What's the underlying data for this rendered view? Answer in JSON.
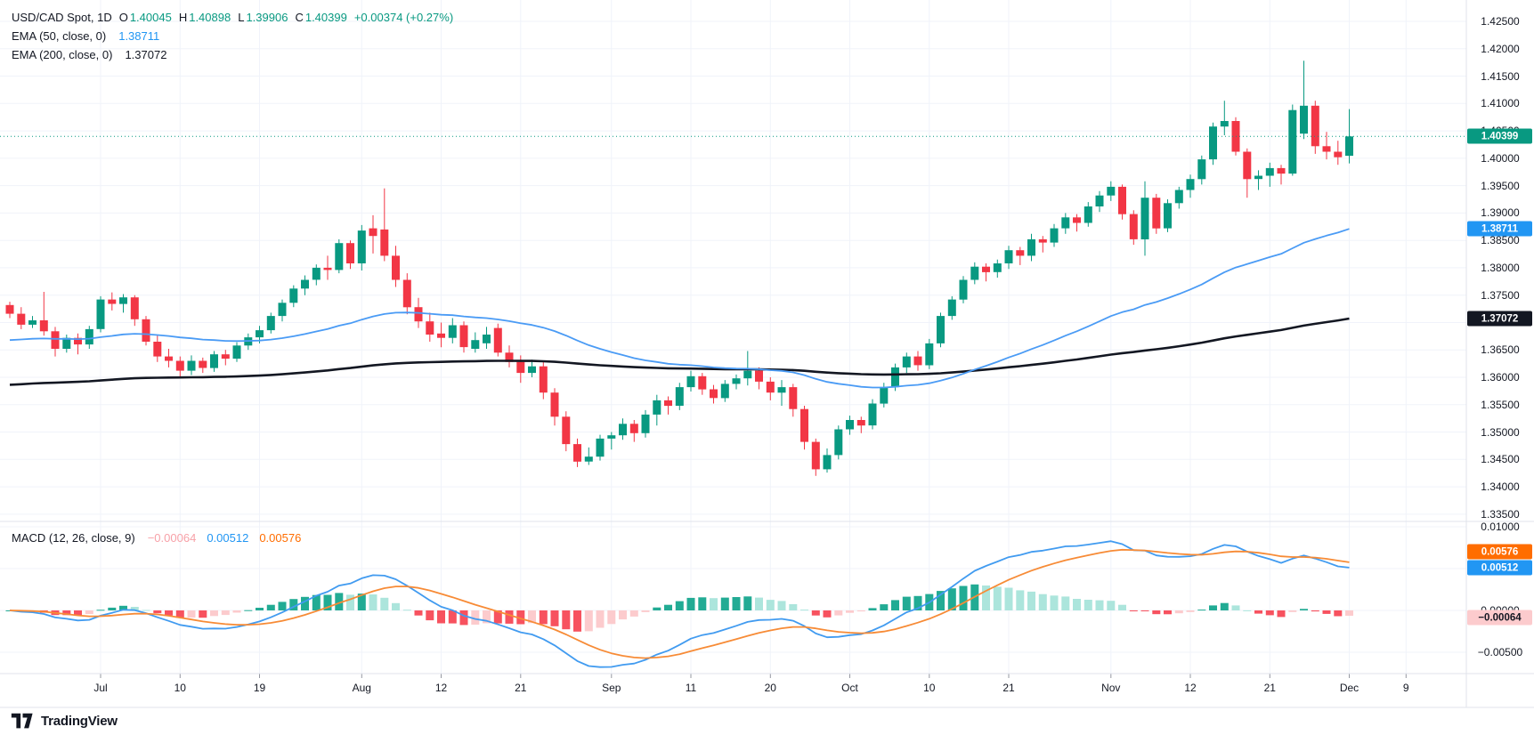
{
  "header": {
    "symbol_title": "USD/CAD Spot, 1D",
    "ohlc": {
      "o_label": "O",
      "o": "1.40045",
      "h_label": "H",
      "h": "1.40898",
      "l_label": "L",
      "l": "1.39906",
      "c_label": "C",
      "c": "1.40399",
      "change": "+0.00374 (+0.27%)"
    },
    "ema50_label": "EMA (50, close, 0)",
    "ema50_value": "1.38711",
    "ema200_label": "EMA (200, close, 0)",
    "ema200_value": "1.37072"
  },
  "macd_panel": {
    "label": "MACD (12, 26, close, 9)",
    "hist_value": "−0.00064",
    "macd_value": "0.00512",
    "signal_value": "0.00576"
  },
  "price_axis": {
    "ticks": [
      "1.42500",
      "1.42000",
      "1.41500",
      "1.41000",
      "1.40500",
      "1.40000",
      "1.39500",
      "1.39000",
      "1.38500",
      "1.38000",
      "1.37500",
      "1.37000",
      "1.36500",
      "1.36000",
      "1.35500",
      "1.35000",
      "1.34500",
      "1.34000",
      "1.33500"
    ],
    "badges": {
      "last_price": "1.40399",
      "ema50": "1.38711",
      "ema200": "1.37072"
    }
  },
  "macd_axis": {
    "ticks": [
      {
        "label": "0.01000",
        "value": 0.01
      },
      {
        "label": "0.00000",
        "value": 0
      },
      {
        "label": "−0.00500",
        "value": -0.005
      }
    ],
    "grid_values": [
      0.01,
      0.005,
      0,
      -0.005
    ],
    "badges": {
      "signal": "0.00576",
      "macd": "0.00512",
      "hist": "−0.00064"
    }
  },
  "time_axis": {
    "ticks": [
      {
        "label": "Jul",
        "index": 8
      },
      {
        "label": "10",
        "index": 15
      },
      {
        "label": "19",
        "index": 22
      },
      {
        "label": "Aug",
        "index": 31
      },
      {
        "label": "12",
        "index": 38
      },
      {
        "label": "21",
        "index": 45
      },
      {
        "label": "Sep",
        "index": 53
      },
      {
        "label": "11",
        "index": 60
      },
      {
        "label": "20",
        "index": 67
      },
      {
        "label": "Oct",
        "index": 74
      },
      {
        "label": "10",
        "index": 81
      },
      {
        "label": "21",
        "index": 88
      },
      {
        "label": "Nov",
        "index": 97
      },
      {
        "label": "12",
        "index": 104
      },
      {
        "label": "21",
        "index": 111
      },
      {
        "label": "Dec",
        "index": 118
      },
      {
        "label": "9",
        "index": 123
      }
    ]
  },
  "branding": {
    "logo_text": "TradingView"
  },
  "colors": {
    "up": "#089981",
    "down": "#f23645",
    "ema50": "#4a9bf5",
    "ema200": "#131722",
    "macd_line": "#419bf0",
    "signal_line": "#f78b36",
    "hist_up": "#22ab94",
    "hist_up_fade": "#ace5dc",
    "hist_down": "#f7525f",
    "hist_down_fade": "#fccbcd",
    "badge_green": "#089981",
    "badge_blue": "#2196f3",
    "badge_black": "#131722",
    "badge_orange": "#ff6d00",
    "badge_pink": "#fccbcd",
    "badge_pink_text": "#131722",
    "grid": "#f0f3fa",
    "separator": "#e0e3eb",
    "tick": "#9598a1",
    "text": "#131722"
  },
  "chart_data": {
    "type": "candlestick+macd",
    "symbol": "USD/CAD Spot",
    "timeframe": "1D",
    "last_price": 1.40399,
    "ylim_price": [
      1.3337,
      1.4289
    ],
    "ylim_macd": [
      -0.00755,
      0.0102
    ],
    "indicators": {
      "ema50": {
        "period": 50,
        "seed": 1.3666,
        "last": 1.38711
      },
      "ema200": {
        "period": 200,
        "seed": 1.3585,
        "last": 1.37072
      },
      "macd": {
        "fast": 12,
        "slow": 26,
        "signal": 9,
        "last_macd": 0.00512,
        "last_signal": 0.00576,
        "last_hist": -0.00064
      }
    },
    "candles": [
      [
        1.3732,
        1.3738,
        1.3708,
        1.3716
      ],
      [
        1.3716,
        1.3728,
        1.3688,
        1.3696
      ],
      [
        1.3696,
        1.3712,
        1.369,
        1.3704
      ],
      [
        1.3704,
        1.3756,
        1.3676,
        1.3684
      ],
      [
        1.3684,
        1.3692,
        1.3638,
        1.3652
      ],
      [
        1.3652,
        1.3678,
        1.3645,
        1.3672
      ],
      [
        1.3672,
        1.368,
        1.3642,
        1.366
      ],
      [
        1.366,
        1.3694,
        1.3652,
        1.3688
      ],
      [
        1.3688,
        1.3748,
        1.3682,
        1.3742
      ],
      [
        1.3742,
        1.3755,
        1.3722,
        1.3734
      ],
      [
        1.3734,
        1.3752,
        1.3718,
        1.3746
      ],
      [
        1.3746,
        1.375,
        1.3694,
        1.3706
      ],
      [
        1.3706,
        1.3712,
        1.3658,
        1.3665
      ],
      [
        1.3665,
        1.3678,
        1.3628,
        1.3638
      ],
      [
        1.3638,
        1.3652,
        1.3618,
        1.363
      ],
      [
        1.363,
        1.3638,
        1.3598,
        1.3612
      ],
      [
        1.3612,
        1.364,
        1.3604,
        1.363
      ],
      [
        1.363,
        1.3636,
        1.3608,
        1.3617
      ],
      [
        1.3617,
        1.3648,
        1.361,
        1.3642
      ],
      [
        1.3642,
        1.365,
        1.3622,
        1.3634
      ],
      [
        1.3634,
        1.3664,
        1.3628,
        1.3658
      ],
      [
        1.3658,
        1.368,
        1.365,
        1.3673
      ],
      [
        1.3673,
        1.3694,
        1.3662,
        1.3686
      ],
      [
        1.3686,
        1.3718,
        1.368,
        1.3712
      ],
      [
        1.3712,
        1.3742,
        1.3702,
        1.3736
      ],
      [
        1.3736,
        1.3768,
        1.3728,
        1.3762
      ],
      [
        1.3762,
        1.3786,
        1.375,
        1.3778
      ],
      [
        1.3778,
        1.3806,
        1.3768,
        1.38
      ],
      [
        1.38,
        1.3822,
        1.3778,
        1.3796
      ],
      [
        1.3796,
        1.3852,
        1.379,
        1.3845
      ],
      [
        1.3845,
        1.385,
        1.3798,
        1.3808
      ],
      [
        1.3808,
        1.3878,
        1.3795,
        1.3868
      ],
      [
        1.3872,
        1.3896,
        1.3826,
        1.3858
      ],
      [
        1.387,
        1.3945,
        1.3812,
        1.3822
      ],
      [
        1.3822,
        1.384,
        1.3765,
        1.3778
      ],
      [
        1.3778,
        1.379,
        1.3715,
        1.3728
      ],
      [
        1.3728,
        1.3745,
        1.369,
        1.3702
      ],
      [
        1.3702,
        1.3718,
        1.3665,
        1.3678
      ],
      [
        1.368,
        1.37,
        1.3655,
        1.3672
      ],
      [
        1.3672,
        1.3708,
        1.3662,
        1.3695
      ],
      [
        1.3695,
        1.3702,
        1.3645,
        1.3655
      ],
      [
        1.3652,
        1.3682,
        1.3645,
        1.3668
      ],
      [
        1.3662,
        1.3692,
        1.3652,
        1.3678
      ],
      [
        1.369,
        1.3698,
        1.3638,
        1.3645
      ],
      [
        1.3645,
        1.3658,
        1.3618,
        1.3628
      ],
      [
        1.3628,
        1.364,
        1.359,
        1.3608
      ],
      [
        1.3608,
        1.3632,
        1.36,
        1.362
      ],
      [
        1.362,
        1.3628,
        1.356,
        1.3572
      ],
      [
        1.3572,
        1.358,
        1.3512,
        1.3528
      ],
      [
        1.3528,
        1.3538,
        1.3465,
        1.3478
      ],
      [
        1.3478,
        1.3488,
        1.3436,
        1.3446
      ],
      [
        1.3446,
        1.3472,
        1.344,
        1.3455
      ],
      [
        1.3455,
        1.3495,
        1.3448,
        1.3488
      ],
      [
        1.3488,
        1.35,
        1.3468,
        1.3494
      ],
      [
        1.3494,
        1.3525,
        1.3486,
        1.3515
      ],
      [
        1.3515,
        1.3522,
        1.3482,
        1.3498
      ],
      [
        1.3498,
        1.354,
        1.349,
        1.3532
      ],
      [
        1.3532,
        1.3568,
        1.3512,
        1.3558
      ],
      [
        1.3558,
        1.3565,
        1.3532,
        1.3548
      ],
      [
        1.3548,
        1.359,
        1.354,
        1.3582
      ],
      [
        1.3582,
        1.3612,
        1.3574,
        1.3602
      ],
      [
        1.3602,
        1.3608,
        1.3568,
        1.3578
      ],
      [
        1.3578,
        1.3586,
        1.3552,
        1.3562
      ],
      [
        1.3562,
        1.3595,
        1.3555,
        1.3588
      ],
      [
        1.3588,
        1.3605,
        1.3578,
        1.3598
      ],
      [
        1.3598,
        1.3648,
        1.3585,
        1.3612
      ],
      [
        1.3612,
        1.3618,
        1.3578,
        1.3592
      ],
      [
        1.3592,
        1.36,
        1.3558,
        1.3572
      ],
      [
        1.3572,
        1.3595,
        1.3548,
        1.3582
      ],
      [
        1.3582,
        1.3588,
        1.3528,
        1.3542
      ],
      [
        1.3542,
        1.3548,
        1.3468,
        1.3482
      ],
      [
        1.3482,
        1.3488,
        1.342,
        1.3432
      ],
      [
        1.3432,
        1.347,
        1.3426,
        1.3458
      ],
      [
        1.3458,
        1.3512,
        1.345,
        1.3505
      ],
      [
        1.3505,
        1.353,
        1.3495,
        1.3522
      ],
      [
        1.3522,
        1.3528,
        1.3498,
        1.3512
      ],
      [
        1.3512,
        1.356,
        1.3505,
        1.3552
      ],
      [
        1.3552,
        1.359,
        1.3545,
        1.3582
      ],
      [
        1.3582,
        1.3625,
        1.3575,
        1.3618
      ],
      [
        1.3618,
        1.3645,
        1.3608,
        1.3638
      ],
      [
        1.3638,
        1.3648,
        1.3612,
        1.3622
      ],
      [
        1.3622,
        1.367,
        1.3615,
        1.3662
      ],
      [
        1.3662,
        1.3718,
        1.3655,
        1.3712
      ],
      [
        1.3712,
        1.3748,
        1.3705,
        1.3742
      ],
      [
        1.3742,
        1.3785,
        1.3735,
        1.3778
      ],
      [
        1.3778,
        1.381,
        1.377,
        1.3802
      ],
      [
        1.3802,
        1.3808,
        1.3775,
        1.3792
      ],
      [
        1.3792,
        1.3815,
        1.3782,
        1.3808
      ],
      [
        1.3808,
        1.384,
        1.3798,
        1.3832
      ],
      [
        1.3832,
        1.3838,
        1.3805,
        1.3822
      ],
      [
        1.3822,
        1.3862,
        1.3812,
        1.3852
      ],
      [
        1.3852,
        1.3858,
        1.3828,
        1.3846
      ],
      [
        1.3846,
        1.388,
        1.3838,
        1.3872
      ],
      [
        1.3872,
        1.39,
        1.3862,
        1.3892
      ],
      [
        1.3892,
        1.3898,
        1.3866,
        1.3882
      ],
      [
        1.3882,
        1.392,
        1.3875,
        1.3912
      ],
      [
        1.3912,
        1.394,
        1.3902,
        1.3932
      ],
      [
        1.3932,
        1.3958,
        1.3922,
        1.3948
      ],
      [
        1.3948,
        1.3952,
        1.3888,
        1.3898
      ],
      [
        1.3898,
        1.3905,
        1.3842,
        1.3852
      ],
      [
        1.3852,
        1.3958,
        1.3822,
        1.3928
      ],
      [
        1.3928,
        1.3935,
        1.3862,
        1.3872
      ],
      [
        1.3872,
        1.3925,
        1.3865,
        1.3918
      ],
      [
        1.3918,
        1.3948,
        1.3908,
        1.3942
      ],
      [
        1.3942,
        1.397,
        1.3928,
        1.3962
      ],
      [
        1.3962,
        1.4005,
        1.3952,
        1.3998
      ],
      [
        1.3998,
        1.4065,
        1.3988,
        1.4058
      ],
      [
        1.4058,
        1.4105,
        1.4042,
        1.4068
      ],
      [
        1.4068,
        1.4075,
        1.4005,
        1.4012
      ],
      [
        1.4012,
        1.4018,
        1.3928,
        1.3962
      ],
      [
        1.3962,
        1.3978,
        1.3942,
        1.3968
      ],
      [
        1.3968,
        1.3992,
        1.3948,
        1.3982
      ],
      [
        1.3982,
        1.3988,
        1.3952,
        1.3972
      ],
      [
        1.3972,
        1.4098,
        1.3968,
        1.4088
      ],
      [
        1.4045,
        1.4178,
        1.4035,
        1.4096
      ],
      [
        1.4096,
        1.4105,
        1.4008,
        1.4022
      ],
      [
        1.4022,
        1.4048,
        1.3998,
        1.4012
      ],
      [
        1.4012,
        1.4032,
        1.3988,
        1.4002
      ],
      [
        1.40045,
        1.40898,
        1.39906,
        1.40399
      ]
    ]
  }
}
